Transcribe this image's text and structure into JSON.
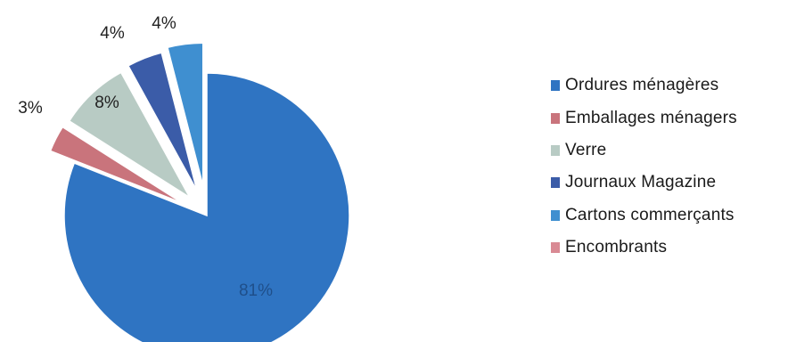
{
  "chart_data": {
    "type": "pie",
    "title": "",
    "legend_position": "right",
    "categories": [
      "Ordures ménagères",
      "Emballages ménagers",
      "Verre",
      "Journaux Magazine",
      "Cartons commerçants",
      "Encombrants"
    ],
    "values": [
      81,
      3,
      8,
      4,
      4,
      0
    ],
    "labels": [
      "81%",
      "3%",
      "8%",
      "4%",
      "4%",
      ""
    ],
    "colors": [
      "#2f74c2",
      "#c9747c",
      "#b8cbc4",
      "#3b5ca8",
      "#3f8fd0",
      "#d98a94"
    ]
  }
}
